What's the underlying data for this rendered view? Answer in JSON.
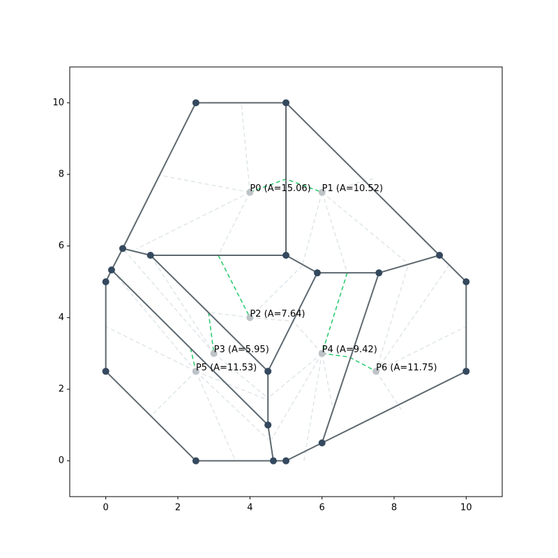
{
  "chart_data": {
    "type": "partition",
    "xlim": [
      -1,
      11
    ],
    "ylim": [
      -1,
      11
    ],
    "xticks": [
      0,
      2,
      4,
      6,
      8,
      10
    ],
    "yticks": [
      0,
      2,
      4,
      6,
      8,
      10
    ],
    "edge_color": "#5d686f",
    "vertex_color": "#34495e",
    "site_color": "#bdc3c7",
    "spoke_color": "#dfe6e9",
    "dual_color": "#2ecc71",
    "vertices": [
      [
        2.5,
        10
      ],
      [
        5,
        10
      ],
      [
        0.47,
        5.93
      ],
      [
        1.24,
        5.74
      ],
      [
        5,
        5.74
      ],
      [
        0.16,
        5.33
      ],
      [
        0,
        5
      ],
      [
        5.87,
        5.25
      ],
      [
        7.58,
        5.25
      ],
      [
        9.26,
        5.74
      ],
      [
        10,
        5
      ],
      [
        10,
        2.5
      ],
      [
        0,
        2.5
      ],
      [
        4.5,
        2.5
      ],
      [
        4.5,
        1
      ],
      [
        6,
        0.5
      ],
      [
        2.5,
        0
      ],
      [
        4.65,
        0
      ],
      [
        5,
        0
      ]
    ],
    "edges": [
      [
        [
          2.5,
          10
        ],
        [
          5,
          10
        ]
      ],
      [
        [
          2.5,
          10
        ],
        [
          0.47,
          5.93
        ]
      ],
      [
        [
          5,
          10
        ],
        [
          5,
          5.74
        ]
      ],
      [
        [
          5,
          10
        ],
        [
          9.26,
          5.74
        ]
      ],
      [
        [
          0.47,
          5.93
        ],
        [
          0.16,
          5.33
        ]
      ],
      [
        [
          0.47,
          5.93
        ],
        [
          1.24,
          5.74
        ]
      ],
      [
        [
          1.24,
          5.74
        ],
        [
          5,
          5.74
        ]
      ],
      [
        [
          5,
          5.74
        ],
        [
          5.87,
          5.25
        ]
      ],
      [
        [
          5.87,
          5.25
        ],
        [
          7.58,
          5.25
        ]
      ],
      [
        [
          7.58,
          5.25
        ],
        [
          9.26,
          5.74
        ]
      ],
      [
        [
          9.26,
          5.74
        ],
        [
          10,
          5
        ]
      ],
      [
        [
          10,
          5
        ],
        [
          10,
          2.5
        ]
      ],
      [
        [
          10,
          2.5
        ],
        [
          6,
          0.5
        ]
      ],
      [
        [
          6,
          0.5
        ],
        [
          7.58,
          5.25
        ]
      ],
      [
        [
          6,
          0.5
        ],
        [
          5,
          0
        ]
      ],
      [
        [
          5,
          0
        ],
        [
          4.65,
          0
        ]
      ],
      [
        [
          4.65,
          0
        ],
        [
          4.5,
          1
        ]
      ],
      [
        [
          4.65,
          0
        ],
        [
          2.5,
          0
        ]
      ],
      [
        [
          2.5,
          0
        ],
        [
          0,
          2.5
        ]
      ],
      [
        [
          0,
          2.5
        ],
        [
          0,
          5
        ]
      ],
      [
        [
          0,
          5
        ],
        [
          0.16,
          5.33
        ]
      ],
      [
        [
          0.16,
          5.33
        ],
        [
          4.5,
          1
        ]
      ],
      [
        [
          4.5,
          1
        ],
        [
          4.5,
          2.5
        ]
      ],
      [
        [
          4.5,
          2.5
        ],
        [
          1.24,
          5.74
        ]
      ],
      [
        [
          4.5,
          2.5
        ],
        [
          5.87,
          5.25
        ]
      ]
    ],
    "spokes": [
      [
        [
          4,
          7.5
        ],
        [
          1.47,
          7.98
        ]
      ],
      [
        [
          4,
          7.5
        ],
        [
          3.76,
          10
        ]
      ],
      [
        [
          4,
          7.5
        ],
        [
          0.85,
          5.92
        ]
      ],
      [
        [
          4,
          7.5
        ],
        [
          3.12,
          5.74
        ]
      ],
      [
        [
          6,
          7.5
        ],
        [
          7.5,
          7.9
        ]
      ],
      [
        [
          6,
          7.5
        ],
        [
          8.4,
          5.5
        ]
      ],
      [
        [
          6,
          7.5
        ],
        [
          6.7,
          5.25
        ]
      ],
      [
        [
          6,
          7.5
        ],
        [
          5.45,
          5.45
        ]
      ],
      [
        [
          4,
          4
        ],
        [
          5.45,
          5.45
        ]
      ],
      [
        [
          4,
          4
        ],
        [
          2.85,
          4.15
        ]
      ],
      [
        [
          4,
          4
        ],
        [
          5.2,
          3.9
        ]
      ],
      [
        [
          3,
          3
        ],
        [
          1.24,
          5.74
        ]
      ],
      [
        [
          3,
          3
        ],
        [
          0.47,
          5.93
        ]
      ],
      [
        [
          3,
          3
        ],
        [
          4.5,
          1.75
        ]
      ],
      [
        [
          2.5,
          2.5
        ],
        [
          0,
          3.75
        ]
      ],
      [
        [
          2.5,
          2.5
        ],
        [
          1.25,
          1.25
        ]
      ],
      [
        [
          2.5,
          2.5
        ],
        [
          3.6,
          0
        ]
      ],
      [
        [
          2.5,
          2.5
        ],
        [
          0.16,
          5.33
        ]
      ],
      [
        [
          2.5,
          2.5
        ],
        [
          4.5,
          1.7
        ]
      ],
      [
        [
          2.5,
          2.5
        ],
        [
          4.5,
          0.6
        ]
      ],
      [
        [
          6,
          3
        ],
        [
          4.5,
          1.75
        ]
      ],
      [
        [
          6,
          3
        ],
        [
          4.6,
          0.6
        ]
      ],
      [
        [
          6,
          3
        ],
        [
          5.5,
          0
        ]
      ],
      [
        [
          6,
          3
        ],
        [
          5.2,
          3.9
        ]
      ],
      [
        [
          6,
          3
        ],
        [
          6.3,
          1.45
        ]
      ],
      [
        [
          7.5,
          2.5
        ],
        [
          9.55,
          5.5
        ]
      ],
      [
        [
          7.5,
          2.5
        ],
        [
          10,
          3.75
        ]
      ],
      [
        [
          7.5,
          2.5
        ],
        [
          8.25,
          1.35
        ]
      ],
      [
        [
          7.5,
          2.5
        ],
        [
          8.4,
          5.5
        ]
      ]
    ],
    "dual_edges": [
      [
        [
          4,
          7.5
        ],
        [
          5,
          7.87
        ],
        [
          6,
          7.5
        ]
      ],
      [
        [
          3.12,
          5.74
        ],
        [
          4,
          4
        ]
      ],
      [
        [
          2.85,
          4.15
        ],
        [
          3,
          3
        ]
      ],
      [
        [
          2.35,
          3.15
        ],
        [
          2.5,
          2.5
        ]
      ],
      [
        [
          6.7,
          5.25
        ],
        [
          6,
          3
        ]
      ],
      [
        [
          6,
          3
        ],
        [
          6.75,
          2.9
        ],
        [
          7.5,
          2.5
        ]
      ]
    ],
    "sites": [
      {
        "x": 4,
        "y": 7.5,
        "label": "P0 (A=15.06)"
      },
      {
        "x": 6,
        "y": 7.5,
        "label": "P1 (A=10.52)"
      },
      {
        "x": 4,
        "y": 4,
        "label": "P2 (A=7.64)"
      },
      {
        "x": 3,
        "y": 3,
        "label": "P3 (A=5.95)"
      },
      {
        "x": 6,
        "y": 3,
        "label": "P4 (A=9.42)"
      },
      {
        "x": 2.5,
        "y": 2.5,
        "label": "P5 (A=11.53)"
      },
      {
        "x": 7.5,
        "y": 2.5,
        "label": "P6 (A=11.75)"
      }
    ]
  }
}
